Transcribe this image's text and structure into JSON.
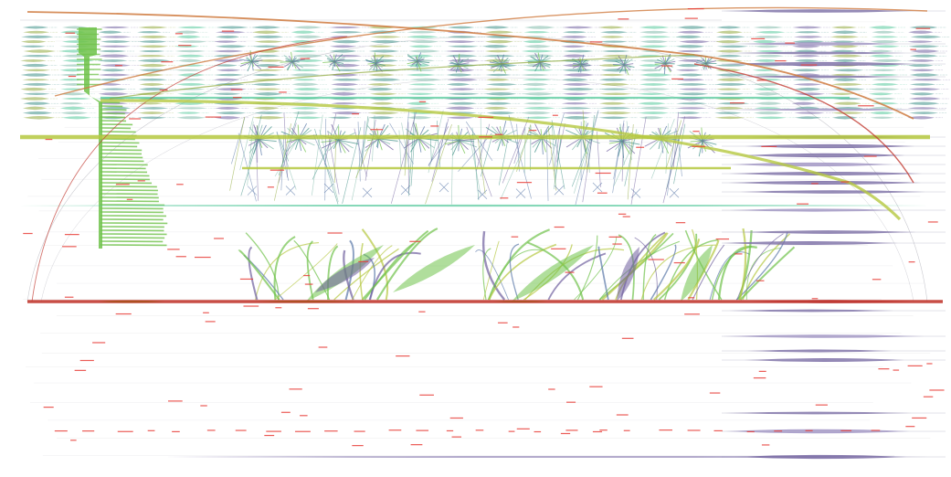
{
  "view": {
    "background": "#ffffff",
    "labels_legible": false
  },
  "palette": {
    "teal": "#3d8f86",
    "teal_light": "#7fb9a9",
    "mint": "#53c89a",
    "purple": "#6f5f9e",
    "purple_light": "#9a8cc0",
    "green": "#6fc24a",
    "lime": "#b5c840",
    "olive": "#8fa83a",
    "orange": "#cf7a3e",
    "red": "#c23b32",
    "crimson": "#a8233a",
    "brown": "#a8501c",
    "blue": "#5a78a8",
    "label_red": "#e8403a"
  },
  "components": {
    "weave_rows": 20,
    "weave_columns": 24,
    "stars_row1": 12,
    "stars_row2": 12,
    "veil_columns": 12,
    "grass_clusters": 9,
    "right_purple_lenses": 22
  }
}
